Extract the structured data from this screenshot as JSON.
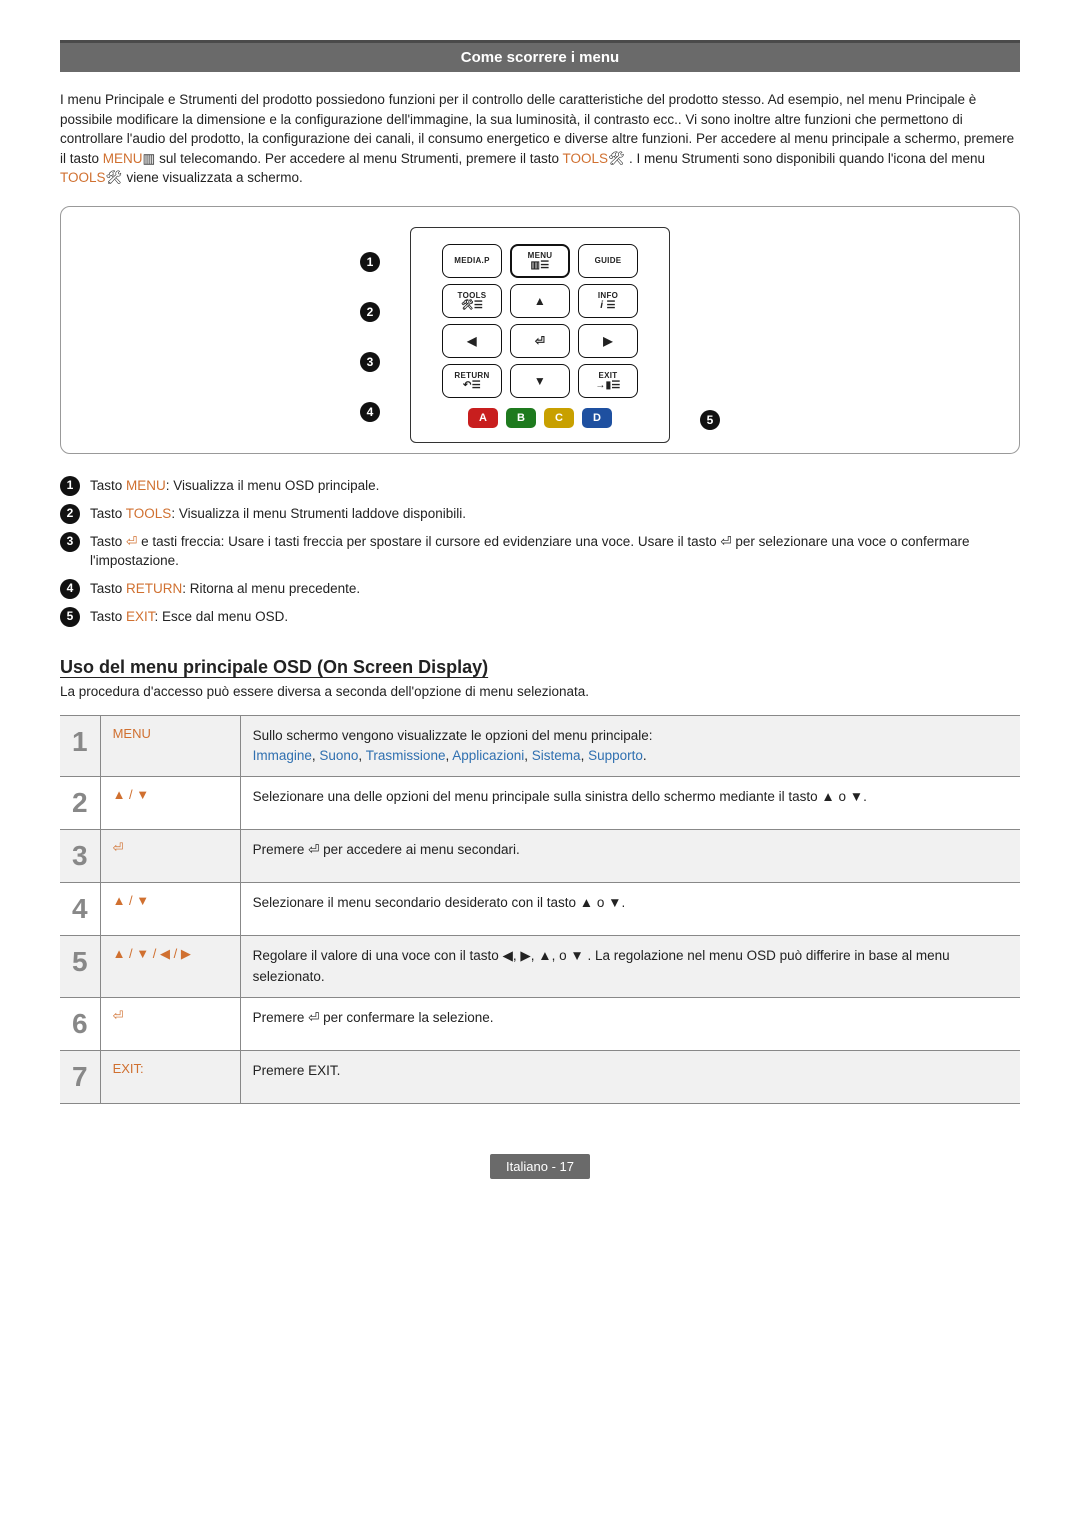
{
  "header": {
    "title": "Come scorrere i menu"
  },
  "intro": {
    "text_a": "I menu Principale e Strumenti del prodotto possiedono funzioni per il controllo delle caratteristiche del prodotto stesso. Ad esempio, nel menu Principale è possibile modificare la dimensione e la configurazione dell'immagine, la sua luminosità, il contrasto ecc.. Vi sono inoltre altre funzioni che permettono di controllare l'audio del prodotto, la configurazione dei canali, il consumo energetico e diverse altre funzioni. Per accedere al menu principale a schermo, premere il tasto ",
    "kw1": "MENU",
    "text_b": " sul telecomando. Per accedere al menu Strumenti, premere il tasto ",
    "kw2": "TOOLS",
    "text_c": ". I menu Strumenti sono disponibili quando l'icona del menu ",
    "kw3": "TOOLS",
    "text_d": " viene visualizzata a schermo."
  },
  "remote": {
    "row1": [
      "MEDIA.P",
      "MENU",
      "GUIDE"
    ],
    "row2": [
      "TOOLS",
      "▲",
      "INFO"
    ],
    "row3": [
      "◀",
      "⏎",
      "▶"
    ],
    "row4": [
      "RETURN",
      "▼",
      "EXIT"
    ],
    "colors": [
      "A",
      "B",
      "C",
      "D"
    ]
  },
  "legend": [
    {
      "n": "1",
      "pre": "Tasto ",
      "kw": "MENU",
      "post": ": Visualizza il menu OSD principale."
    },
    {
      "n": "2",
      "pre": "Tasto ",
      "kw": "TOOLS",
      "post": ": Visualizza il menu Strumenti laddove disponibili."
    },
    {
      "n": "3",
      "pre": "Tasto ",
      "kw": "⏎",
      "post": " e tasti freccia: Usare i tasti freccia per spostare il cursore ed evidenziare una voce. Usare il tasto ⏎ per selezionare una voce o confermare l'impostazione."
    },
    {
      "n": "4",
      "pre": "Tasto ",
      "kw": "RETURN",
      "post": ": Ritorna al menu precedente."
    },
    {
      "n": "5",
      "pre": "Tasto ",
      "kw": "EXIT",
      "post": ": Esce dal menu OSD."
    }
  ],
  "section2": {
    "heading": "Uso del menu principale OSD (On Screen Display)",
    "sub": "La procedura d'accesso può essere diversa a seconda dell'opzione di menu selezionata."
  },
  "steps": [
    {
      "n": "1",
      "key": "MENU",
      "desc": "Sullo schermo vengono visualizzate le opzioni del menu principale:",
      "links": [
        "Immagine",
        "Suono",
        "Trasmissione",
        "Applicazioni",
        "Sistema",
        "Supporto"
      ]
    },
    {
      "n": "2",
      "key": "▲ / ▼",
      "desc": "Selezionare una delle opzioni del menu principale sulla sinistra dello schermo mediante il tasto ▲ o ▼."
    },
    {
      "n": "3",
      "key": "⏎",
      "desc": "Premere ⏎ per accedere ai menu secondari."
    },
    {
      "n": "4",
      "key": "▲ / ▼",
      "desc": "Selezionare il menu secondario desiderato con il tasto ▲ o ▼."
    },
    {
      "n": "5",
      "key": "▲ / ▼ / ◀ / ▶",
      "desc": "Regolare il valore di una voce con il tasto ◀, ▶, ▲, o ▼ . La regolazione nel menu OSD può differire in base al menu selezionato."
    },
    {
      "n": "6",
      "key": "⏎",
      "desc": "Premere ⏎ per confermare la selezione."
    },
    {
      "n": "7",
      "key": "EXIT:",
      "desc": "Premere EXIT."
    }
  ],
  "footer": {
    "text": "Italiano - 17"
  }
}
